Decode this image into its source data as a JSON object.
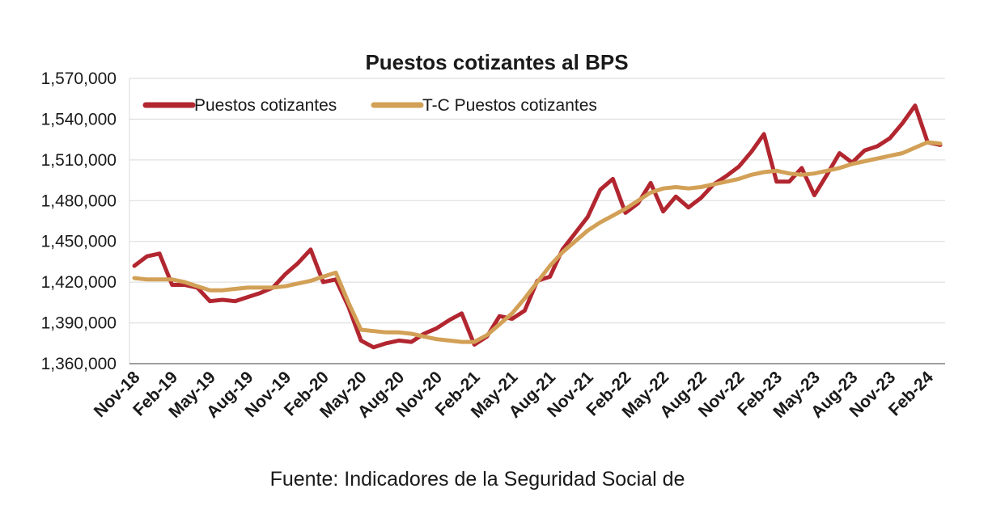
{
  "chart_data": {
    "type": "line",
    "title": "Puestos cotizantes al BPS",
    "source": "Fuente: Indicadores de la Seguridad Social de",
    "ylim": [
      1360000,
      1570000
    ],
    "yticks": [
      1360000,
      1390000,
      1420000,
      1450000,
      1480000,
      1510000,
      1540000,
      1570000
    ],
    "ytick_labels": [
      "1,360,000",
      "1,390,000",
      "1,420,000",
      "1,450,000",
      "1,480,000",
      "1,510,000",
      "1,540,000",
      "1,570,000"
    ],
    "xtick_labels": [
      "Nov-18",
      "Feb-19",
      "May-19",
      "Aug-19",
      "Nov-19",
      "Feb-20",
      "May-20",
      "Aug-20",
      "Nov-20",
      "Feb-21",
      "May-21",
      "Aug-21",
      "Nov-21",
      "Feb-22",
      "May-22",
      "Aug-22",
      "Nov-22",
      "Feb-23",
      "May-23",
      "Aug-23",
      "Nov-23",
      "Feb-24"
    ],
    "grid": "horizontal",
    "legend_position": "top-left",
    "colors": {
      "series_raw": "#b22630",
      "series_trend": "#d2a056"
    },
    "x": [
      "Nov-18",
      "Dec-18",
      "Jan-19",
      "Feb-19",
      "Mar-19",
      "Apr-19",
      "May-19",
      "Jun-19",
      "Jul-19",
      "Aug-19",
      "Sep-19",
      "Oct-19",
      "Nov-19",
      "Dec-19",
      "Jan-20",
      "Feb-20",
      "Mar-20",
      "Apr-20",
      "May-20",
      "Jun-20",
      "Jul-20",
      "Aug-20",
      "Sep-20",
      "Oct-20",
      "Nov-20",
      "Dec-20",
      "Jan-21",
      "Feb-21",
      "Mar-21",
      "Apr-21",
      "May-21",
      "Jun-21",
      "Jul-21",
      "Aug-21",
      "Sep-21",
      "Oct-21",
      "Nov-21",
      "Dec-21",
      "Jan-22",
      "Feb-22",
      "Mar-22",
      "Apr-22",
      "May-22",
      "Jun-22",
      "Jul-22",
      "Aug-22",
      "Sep-22",
      "Oct-22",
      "Nov-22",
      "Dec-22",
      "Jan-23",
      "Feb-23",
      "Mar-23",
      "Apr-23",
      "May-23",
      "Jun-23",
      "Jul-23",
      "Aug-23",
      "Sep-23",
      "Oct-23",
      "Nov-23",
      "Dec-23",
      "Jan-24",
      "Feb-24",
      "Mar-24"
    ],
    "series": [
      {
        "name": "Puestos cotizantes",
        "values": [
          1432000,
          1439000,
          1441000,
          1418000,
          1418000,
          1416000,
          1406000,
          1407000,
          1406000,
          1409000,
          1412000,
          1416000,
          1426000,
          1434000,
          1444000,
          1420000,
          1422000,
          1402000,
          1377000,
          1372000,
          1375000,
          1377000,
          1376000,
          1382000,
          1386000,
          1392000,
          1397000,
          1374000,
          1380000,
          1395000,
          1393000,
          1399000,
          1421000,
          1424000,
          1444000,
          1456000,
          1468000,
          1488000,
          1496000,
          1471000,
          1478000,
          1493000,
          1472000,
          1483000,
          1475000,
          1482000,
          1492000,
          1498000,
          1505000,
          1516000,
          1529000,
          1494000,
          1494000,
          1504000,
          1484000,
          1499000,
          1515000,
          1508000,
          1517000,
          1520000,
          1526000,
          1537000,
          1550000,
          1523000,
          1521000
        ]
      },
      {
        "name": "T-C Puestos cotizantes",
        "values": [
          1423000,
          1422000,
          1422000,
          1422000,
          1420000,
          1417000,
          1414000,
          1414000,
          1415000,
          1416000,
          1416000,
          1416000,
          1417000,
          1419000,
          1421000,
          1424000,
          1427000,
          1405000,
          1385000,
          1384000,
          1383000,
          1383000,
          1382000,
          1380000,
          1378000,
          1377000,
          1376000,
          1376000,
          1381000,
          1389000,
          1397000,
          1408000,
          1420000,
          1432000,
          1442000,
          1450000,
          1458000,
          1464000,
          1469000,
          1474000,
          1480000,
          1486000,
          1489000,
          1490000,
          1489000,
          1490000,
          1492000,
          1494000,
          1496000,
          1499000,
          1501000,
          1502000,
          1500000,
          1499000,
          1500000,
          1502000,
          1504000,
          1507000,
          1509000,
          1511000,
          1513000,
          1515000,
          1519000,
          1523000,
          1522000
        ]
      }
    ]
  }
}
